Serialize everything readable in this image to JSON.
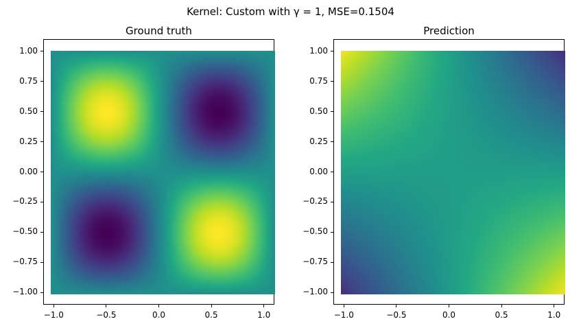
{
  "figure": {
    "title": "Kernel: Custom with γ = 1, MSE=0.1504"
  },
  "chart_data": [
    {
      "type": "heatmap",
      "title": "Ground truth",
      "xlim": [
        -1.1,
        1.1
      ],
      "ylim": [
        -1.1,
        1.1
      ],
      "data_extent": [
        -1.0,
        1.0
      ],
      "x_ticks": [
        "−1.0",
        "−0.5",
        "0.0",
        "0.5",
        "1.0"
      ],
      "x_tick_values": [
        -1.0,
        -0.5,
        0.0,
        0.5,
        1.0
      ],
      "y_ticks": [
        "1.00",
        "0.75",
        "0.50",
        "0.25",
        "0.00",
        "−0.25",
        "−0.50",
        "−0.75",
        "−1.00"
      ],
      "y_tick_values": [
        1.0,
        0.75,
        0.5,
        0.25,
        0.0,
        -0.25,
        -0.5,
        -0.75,
        -1.0
      ],
      "colormap": "viridis",
      "pattern": "sin(pi*x)*sin(pi*y) style saddle: high (yellow) near (-0.5,0.5) and (0.5,-0.5), low (purple) near (0.5,0.5) and (-0.5,-0.5), green along axes"
    },
    {
      "type": "heatmap",
      "title": "Prediction",
      "xlim": [
        -1.1,
        1.1
      ],
      "ylim": [
        -1.1,
        1.1
      ],
      "data_extent": [
        -1.0,
        1.0
      ],
      "x_ticks": [
        "−1.0",
        "−0.5",
        "0.0",
        "0.5",
        "1.0"
      ],
      "x_tick_values": [
        -1.0,
        -0.5,
        0.0,
        0.5,
        1.0
      ],
      "y_ticks": [
        "1.00",
        "0.75",
        "0.50",
        "0.25",
        "0.00",
        "−0.25",
        "−0.50",
        "−0.75",
        "−1.00"
      ],
      "y_tick_values": [
        1.0,
        0.75,
        0.5,
        0.25,
        0.0,
        -0.25,
        -0.5,
        -0.75,
        -1.0
      ],
      "colormap": "viridis",
      "pattern": "smooth -x*y like gradient: yellow-green at top-left and bottom-right corners, dark purple at top-right and bottom-left corners, teal in the middle"
    }
  ]
}
